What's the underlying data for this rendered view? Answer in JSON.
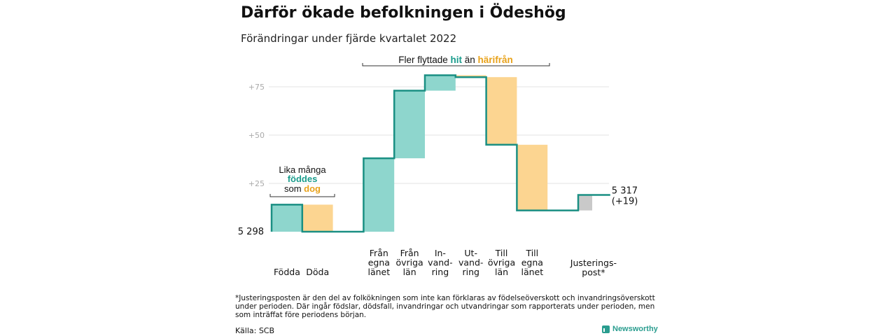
{
  "title": "Därför ökade befolkningen i Ödeshög",
  "subtitle": "Förändringar under fjärde kvartalet 2022",
  "colors": {
    "line": "#1a8f83",
    "gain": "#8ed6cd",
    "loss": "#fcd591",
    "adjust": "#c9c9c9",
    "hit": "#1a9c8c",
    "harifran": "#e8a21a"
  },
  "chart_data": {
    "type": "waterfall",
    "base_value": 5298,
    "base_label": "5 298",
    "end_label": "5 317",
    "end_change": "(+19)",
    "ylim": [
      0,
      90
    ],
    "yticks": [
      {
        "value": 25,
        "label": "+25"
      },
      {
        "value": 50,
        "label": "+50"
      },
      {
        "value": 75,
        "label": "+75"
      }
    ],
    "grid": true,
    "steps": [
      {
        "label": [
          "Födda"
        ],
        "delta": 14,
        "kind": "gain"
      },
      {
        "label": [
          "Döda"
        ],
        "delta": -14,
        "kind": "loss"
      },
      {
        "label": [
          "Från",
          "egna",
          "länet"
        ],
        "delta": 38,
        "kind": "gain"
      },
      {
        "label": [
          "Från",
          "övriga",
          "län"
        ],
        "delta": 35,
        "kind": "gain"
      },
      {
        "label": [
          "In-",
          "vand-",
          "ring"
        ],
        "delta": 8,
        "kind": "gain"
      },
      {
        "label": [
          "Ut-",
          "vand-",
          "ring"
        ],
        "delta": -1,
        "kind": "loss"
      },
      {
        "label": [
          "Till",
          "övriga",
          "län"
        ],
        "delta": -35,
        "kind": "loss"
      },
      {
        "label": [
          "Till",
          "egna",
          "länet"
        ],
        "delta": -34,
        "kind": "loss"
      },
      {
        "label": [
          "Justerings-",
          "post*"
        ],
        "delta": 8,
        "kind": "adjust"
      }
    ],
    "annotations": {
      "births": {
        "line1": "Lika många",
        "line2": "föddes",
        "line3_pre": "som ",
        "line3_word": "dog"
      },
      "migration": {
        "pre": "Fler flyttade ",
        "word1": "hit",
        "mid": " än ",
        "word2": "härifrån"
      }
    }
  },
  "footnote": "*Justeringsposten är den del av folkökningen som inte kan förklaras av födelseöverskott och invandringsöverskott under perioden. Där ingår födslar, dödsfall, invandringar och utvandringar som rapporterats under perioden, men som inträffat före periodens början.",
  "source": "Källa: SCB",
  "logo_text": "Newsworthy",
  "logo_icon": "newsworthy-logo-icon"
}
